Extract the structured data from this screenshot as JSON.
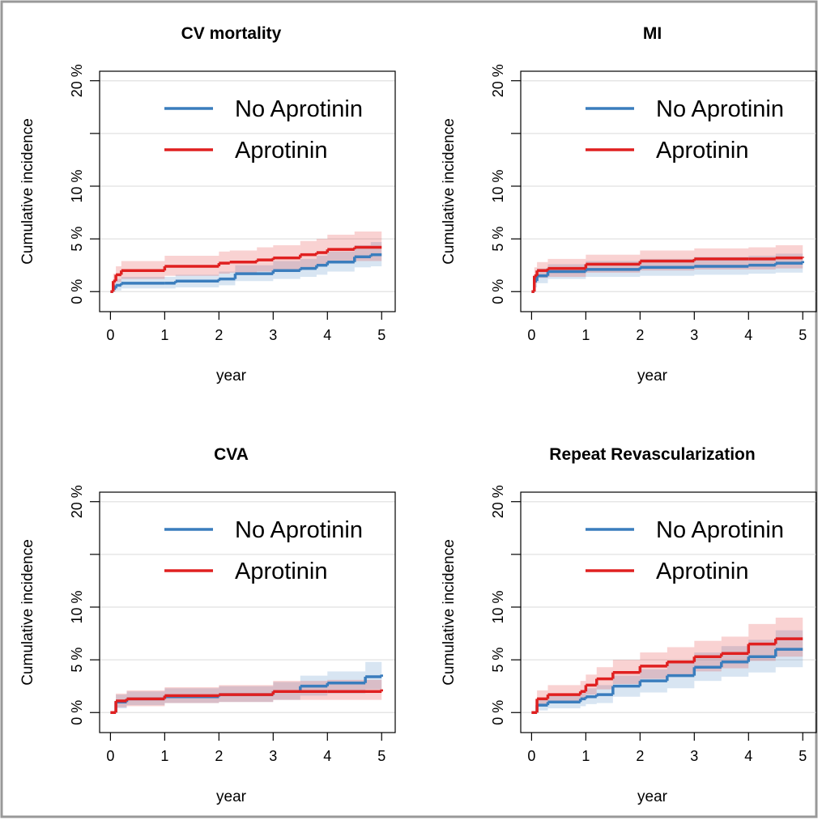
{
  "chart_data": [
    {
      "type": "line",
      "step": true,
      "title": "CV mortality",
      "xlabel": "year",
      "ylabel": "Cumulative incidence",
      "xlim": [
        -0.2,
        5.25
      ],
      "xticks": [
        0,
        1,
        2,
        3,
        4,
        5
      ],
      "ylim": [
        -1.9,
        20.9
      ],
      "yticks": [
        {
          "value": 0,
          "label": "0 %"
        },
        {
          "value": 5,
          "label": "5 %"
        },
        {
          "value": 10,
          "label": "10 %"
        },
        {
          "value": 15,
          "label": null
        },
        {
          "value": 20,
          "label": "20 %"
        }
      ],
      "grid": true,
      "legend": "top-right",
      "series": [
        {
          "name": "No Aprotinin",
          "color": "#3a7dbd",
          "x": [
            0,
            0.05,
            0.1,
            0.2,
            1,
            1.2,
            2,
            2.3,
            3,
            3.5,
            3.8,
            4,
            4.5,
            4.8,
            5
          ],
          "values": [
            0,
            0.3,
            0.6,
            0.8,
            0.8,
            1,
            1.2,
            1.7,
            2,
            2.2,
            2.5,
            2.8,
            3.3,
            3.5,
            3.5
          ],
          "lower": [
            0,
            0,
            0.1,
            0.3,
            0.3,
            0.4,
            0.6,
            1,
            1.2,
            1.4,
            1.6,
            1.9,
            2.3,
            2.4,
            2.4
          ],
          "upper": [
            0,
            0.8,
            1.2,
            1.4,
            1.4,
            1.6,
            1.9,
            2.5,
            2.9,
            3.1,
            3.4,
            3.8,
            4.4,
            4.7,
            4.7
          ]
        },
        {
          "name": "Aprotinin",
          "color": "#e02020",
          "x": [
            0,
            0.05,
            0.1,
            0.2,
            1,
            2,
            2.2,
            2.7,
            3,
            3.5,
            3.8,
            4,
            4.5,
            5
          ],
          "values": [
            0,
            1,
            1.6,
            2,
            2.4,
            2.7,
            2.8,
            3,
            3.2,
            3.5,
            3.7,
            4,
            4.2,
            4.2
          ],
          "lower": [
            0,
            0.4,
            0.9,
            1.2,
            1.5,
            1.7,
            1.8,
            1.9,
            2.1,
            2.3,
            2.5,
            2.7,
            2.9,
            2.9
          ],
          "upper": [
            0,
            1.7,
            2.4,
            2.9,
            3.4,
            3.8,
            3.9,
            4.2,
            4.4,
            4.8,
            5,
            5.4,
            5.7,
            5.7
          ]
        }
      ]
    },
    {
      "type": "line",
      "step": true,
      "title": "MI",
      "xlabel": "year",
      "ylabel": "Cumulative incidence",
      "xlim": [
        -0.2,
        5.25
      ],
      "xticks": [
        0,
        1,
        2,
        3,
        4,
        5
      ],
      "ylim": [
        -1.9,
        20.9
      ],
      "yticks": [
        {
          "value": 0,
          "label": "0 %"
        },
        {
          "value": 5,
          "label": "5 %"
        },
        {
          "value": 10,
          "label": "10 %"
        },
        {
          "value": 15,
          "label": null
        },
        {
          "value": 20,
          "label": "20 %"
        }
      ],
      "grid": true,
      "legend": "top-right",
      "series": [
        {
          "name": "No Aprotinin",
          "color": "#3a7dbd",
          "x": [
            0,
            0.05,
            0.1,
            0.3,
            1,
            2,
            3,
            4,
            4.5,
            5
          ],
          "values": [
            0,
            1,
            1.5,
            1.9,
            2.1,
            2.3,
            2.4,
            2.5,
            2.7,
            2.9
          ],
          "lower": [
            0,
            0.4,
            0.8,
            1.2,
            1.4,
            1.5,
            1.6,
            1.7,
            1.8,
            2
          ],
          "upper": [
            0,
            1.6,
            2.2,
            2.6,
            2.9,
            3.1,
            3.3,
            3.4,
            3.6,
            3.9
          ]
        },
        {
          "name": "Aprotinin",
          "color": "#e02020",
          "x": [
            0,
            0.05,
            0.1,
            0.3,
            1,
            2,
            3,
            4,
            4.5,
            5
          ],
          "values": [
            0,
            1.5,
            2,
            2.2,
            2.6,
            2.9,
            3.1,
            3.1,
            3.2,
            3.3
          ],
          "lower": [
            0,
            0.8,
            1.3,
            1.4,
            1.8,
            2,
            2.1,
            2.1,
            2.2,
            2.2
          ],
          "upper": [
            0,
            2.3,
            2.8,
            3.1,
            3.5,
            3.9,
            4.1,
            4.2,
            4.4,
            4.8
          ]
        }
      ]
    },
    {
      "type": "line",
      "step": true,
      "title": "CVA",
      "xlabel": "year",
      "ylabel": "Cumulative incidence",
      "xlim": [
        -0.2,
        5.25
      ],
      "xticks": [
        0,
        1,
        2,
        3,
        4,
        5
      ],
      "ylim": [
        -1.9,
        20.9
      ],
      "yticks": [
        {
          "value": 0,
          "label": "0 %"
        },
        {
          "value": 5,
          "label": "5 %"
        },
        {
          "value": 10,
          "label": "10 %"
        },
        {
          "value": 15,
          "label": null
        },
        {
          "value": 20,
          "label": "20 %"
        }
      ],
      "grid": true,
      "legend": "top-right",
      "series": [
        {
          "name": "No Aprotinin",
          "color": "#3a7dbd",
          "x": [
            0,
            0.1,
            0.3,
            1,
            2,
            3,
            3.5,
            4,
            4.7,
            5
          ],
          "values": [
            0,
            1,
            1.3,
            1.5,
            1.7,
            2,
            2.5,
            2.8,
            3.4,
            3.6
          ],
          "lower": [
            0,
            0.4,
            0.7,
            0.9,
            1,
            1.2,
            1.6,
            1.8,
            2.2,
            2.3
          ],
          "upper": [
            0,
            1.7,
            2,
            2.3,
            2.5,
            2.9,
            3.5,
            3.9,
            4.8,
            5.2
          ]
        },
        {
          "name": "Aprotinin",
          "color": "#e02020",
          "x": [
            0,
            0.1,
            0.3,
            1,
            2,
            3,
            4,
            5
          ],
          "values": [
            0,
            1.1,
            1.3,
            1.6,
            1.7,
            2,
            2,
            2.2
          ],
          "lower": [
            0,
            0.5,
            0.6,
            0.9,
            1,
            1.2,
            1.2,
            1.3
          ],
          "upper": [
            0,
            1.8,
            2.1,
            2.4,
            2.6,
            3,
            3.1,
            3.3
          ]
        }
      ]
    },
    {
      "type": "line",
      "step": true,
      "title": "Repeat Revascularization",
      "xlabel": "year",
      "ylabel": "Cumulative incidence",
      "xlim": [
        -0.2,
        5.25
      ],
      "xticks": [
        0,
        1,
        2,
        3,
        4,
        5
      ],
      "ylim": [
        -1.9,
        20.9
      ],
      "yticks": [
        {
          "value": 0,
          "label": "0 %"
        },
        {
          "value": 5,
          "label": "5 %"
        },
        {
          "value": 10,
          "label": "10 %"
        },
        {
          "value": 15,
          "label": null
        },
        {
          "value": 20,
          "label": "20 %"
        }
      ],
      "grid": true,
      "legend": "top-right",
      "series": [
        {
          "name": "No Aprotinin",
          "color": "#3a7dbd",
          "x": [
            0,
            0.1,
            0.3,
            0.9,
            1,
            1.2,
            1.5,
            2,
            2.5,
            3,
            3.5,
            4,
            4.5,
            5
          ],
          "values": [
            0,
            0.7,
            1,
            1.3,
            1.5,
            1.7,
            2.5,
            3,
            3.5,
            4.3,
            4.8,
            5.3,
            6,
            6
          ],
          "lower": [
            0,
            0.2,
            0.4,
            0.6,
            0.8,
            0.9,
            1.5,
            1.9,
            2.3,
            3,
            3.4,
            3.8,
            4.3,
            4.3
          ],
          "upper": [
            0,
            1.3,
            1.7,
            2.1,
            2.3,
            2.6,
            3.5,
            4.1,
            4.8,
            5.7,
            6.3,
            6.9,
            7.8,
            7.8
          ]
        },
        {
          "name": "Aprotinin",
          "color": "#e02020",
          "x": [
            0,
            0.1,
            0.3,
            0.9,
            1,
            1.2,
            1.5,
            2,
            2.5,
            3,
            3.5,
            4,
            4.5,
            5
          ],
          "values": [
            0,
            1.3,
            1.7,
            2,
            2.6,
            3.2,
            3.8,
            4.4,
            4.8,
            5.3,
            5.6,
            6.5,
            7,
            7
          ],
          "lower": [
            0,
            0.6,
            1,
            1.2,
            1.7,
            2.2,
            2.7,
            3.2,
            3.5,
            3.9,
            4.2,
            4.9,
            5.3,
            5.3
          ],
          "upper": [
            0,
            2.1,
            2.6,
            3,
            3.6,
            4.3,
            5,
            5.7,
            6.2,
            6.8,
            7.2,
            8.4,
            9,
            9
          ]
        }
      ]
    }
  ]
}
